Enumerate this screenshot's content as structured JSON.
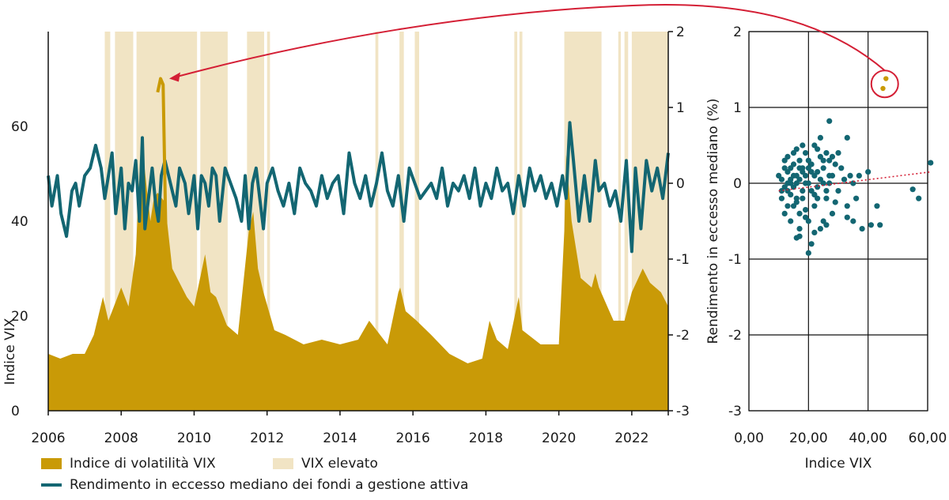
{
  "colors": {
    "vix_fill": "#c99a07",
    "high_vix_band": "#f1e4c4",
    "excess_line": "#136672",
    "scatter_point": "#136672",
    "highlight_point": "#c99a07",
    "annotation": "#d41f35",
    "grid": "#111111"
  },
  "legend": {
    "vix_label": "Indice di volatilità VIX",
    "high_label": "VIX elevato",
    "excess_label": "Rendimento in eccesso mediano dei fondi a gestione attiva"
  },
  "chart_data": [
    {
      "type": "area",
      "xlim": [
        2006,
        2023
      ],
      "x_ticks": [
        "2006",
        "2008",
        "2010",
        "2012",
        "2014",
        "2016",
        "2018",
        "2020",
        "2022"
      ],
      "vix_axis": {
        "title": "Indice VIX",
        "ticks": [
          "0",
          "20",
          "40",
          "60"
        ],
        "ylim": [
          0,
          80
        ]
      },
      "excess_axis": {
        "ticks": [
          "2",
          "1",
          "0",
          "-1",
          "-2",
          "-3"
        ],
        "ylim": [
          -3,
          2
        ]
      },
      "high_vix_periods": [
        [
          2007.55,
          2007.7
        ],
        [
          2007.83,
          2008.33
        ],
        [
          2008.42,
          2010.08
        ],
        [
          2010.17,
          2010.92
        ],
        [
          2011.45,
          2011.92
        ],
        [
          2012.0,
          2012.08
        ],
        [
          2014.97,
          2015.05
        ],
        [
          2015.63,
          2015.75
        ],
        [
          2016.05,
          2016.17
        ],
        [
          2018.78,
          2018.86
        ],
        [
          2018.92,
          2019.0
        ],
        [
          2020.15,
          2021.17
        ],
        [
          2021.63,
          2021.7
        ],
        [
          2021.8,
          2021.9
        ],
        [
          2022.0,
          2023.0
        ]
      ],
      "series": [
        {
          "key": "vix",
          "x": [
            2006.0,
            2006.33,
            2006.67,
            2007.0,
            2007.25,
            2007.5,
            2007.65,
            2007.8,
            2008.0,
            2008.2,
            2008.4,
            2008.55,
            2008.7,
            2008.8,
            2008.9,
            2009.0,
            2009.2,
            2009.4,
            2009.6,
            2009.8,
            2010.0,
            2010.3,
            2010.45,
            2010.6,
            2010.9,
            2011.2,
            2011.5,
            2011.62,
            2011.75,
            2011.9,
            2012.2,
            2012.5,
            2013.0,
            2013.5,
            2014.0,
            2014.5,
            2014.8,
            2015.0,
            2015.3,
            2015.6,
            2015.65,
            2015.8,
            2016.1,
            2016.5,
            2017.0,
            2017.5,
            2017.9,
            2018.1,
            2018.3,
            2018.6,
            2018.9,
            2019.0,
            2019.5,
            2020.0,
            2020.15,
            2020.2,
            2020.35,
            2020.6,
            2020.9,
            2021.0,
            2021.1,
            2021.5,
            2021.8,
            2022.0,
            2022.3,
            2022.5,
            2022.8,
            2023.0
          ],
          "values": [
            12,
            11,
            12,
            12,
            16,
            24,
            19,
            22,
            26,
            22,
            33,
            58,
            47,
            40,
            45,
            46,
            44,
            30,
            27,
            24,
            22,
            33,
            25,
            24,
            18,
            16,
            38,
            42,
            30,
            25,
            17,
            16,
            14,
            15,
            14,
            15,
            19,
            17,
            14,
            25,
            26,
            21,
            19,
            16,
            12,
            10,
            11,
            19,
            15,
            13,
            24,
            17,
            14,
            14,
            38,
            54,
            40,
            28,
            26,
            29,
            26,
            19,
            19,
            25,
            30,
            27,
            25,
            22
          ]
        },
        {
          "key": "excess_return",
          "x": [
            2006.0,
            2006.1,
            2006.25,
            2006.35,
            2006.5,
            2006.65,
            2006.75,
            2006.85,
            2007.0,
            2007.15,
            2007.3,
            2007.45,
            2007.55,
            2007.65,
            2007.75,
            2007.85,
            2008.0,
            2008.1,
            2008.2,
            2008.3,
            2008.4,
            2008.5,
            2008.58,
            2008.65,
            2008.75,
            2008.85,
            2008.95,
            2009.02,
            2009.1,
            2009.2,
            2009.35,
            2009.5,
            2009.6,
            2009.75,
            2009.85,
            2010.0,
            2010.1,
            2010.2,
            2010.3,
            2010.4,
            2010.5,
            2010.6,
            2010.7,
            2010.85,
            2011.0,
            2011.15,
            2011.3,
            2011.4,
            2011.5,
            2011.6,
            2011.7,
            2011.8,
            2011.9,
            2012.0,
            2012.15,
            2012.3,
            2012.45,
            2012.6,
            2012.75,
            2012.9,
            2013.05,
            2013.2,
            2013.35,
            2013.5,
            2013.65,
            2013.8,
            2013.95,
            2014.1,
            2014.25,
            2014.4,
            2014.55,
            2014.7,
            2014.85,
            2015.0,
            2015.15,
            2015.3,
            2015.45,
            2015.6,
            2015.75,
            2015.9,
            2016.05,
            2016.2,
            2016.35,
            2016.5,
            2016.65,
            2016.8,
            2016.95,
            2017.1,
            2017.25,
            2017.4,
            2017.55,
            2017.7,
            2017.85,
            2018.0,
            2018.15,
            2018.3,
            2018.45,
            2018.6,
            2018.75,
            2018.9,
            2019.05,
            2019.2,
            2019.35,
            2019.5,
            2019.65,
            2019.8,
            2019.95,
            2020.1,
            2020.2,
            2020.3,
            2020.4,
            2020.55,
            2020.7,
            2020.85,
            2021.0,
            2021.1,
            2021.25,
            2021.4,
            2021.55,
            2021.7,
            2021.85,
            2022.0,
            2022.1,
            2022.25,
            2022.4,
            2022.55,
            2022.7,
            2022.85,
            2023.0
          ],
          "values": [
            0.1,
            -0.3,
            0.1,
            -0.4,
            -0.7,
            -0.1,
            0.0,
            -0.3,
            0.1,
            0.2,
            0.5,
            0.2,
            -0.2,
            0.1,
            0.4,
            -0.4,
            0.2,
            -0.6,
            0.0,
            -0.1,
            0.3,
            -0.5,
            0.6,
            -0.6,
            -0.2,
            0.2,
            -0.3,
            -0.5,
            0.1,
            0.3,
            0.0,
            -0.3,
            0.2,
            0.0,
            -0.4,
            0.1,
            -0.6,
            0.1,
            0.0,
            -0.3,
            0.2,
            0.1,
            -0.5,
            0.2,
            0.0,
            -0.2,
            -0.5,
            0.1,
            -0.6,
            0.0,
            0.2,
            -0.2,
            -0.6,
            0.0,
            0.2,
            -0.1,
            -0.3,
            0.0,
            -0.4,
            0.2,
            0.0,
            -0.1,
            -0.3,
            0.1,
            -0.2,
            0.0,
            0.1,
            -0.4,
            0.4,
            0.0,
            -0.2,
            0.1,
            -0.3,
            0.0,
            0.4,
            -0.1,
            -0.3,
            0.1,
            -0.5,
            0.2,
            0.0,
            -0.2,
            -0.1,
            0.0,
            -0.2,
            0.2,
            -0.3,
            0.0,
            -0.1,
            0.1,
            -0.2,
            0.2,
            -0.3,
            0.0,
            -0.2,
            0.2,
            -0.1,
            0.0,
            -0.4,
            0.1,
            -0.3,
            0.2,
            -0.1,
            0.1,
            -0.2,
            0.0,
            -0.3,
            0.1,
            -0.2,
            0.8,
            0.3,
            -0.5,
            0.1,
            -0.5,
            0.3,
            -0.1,
            0.0,
            -0.3,
            -0.1,
            -0.5,
            0.3,
            -0.9,
            0.2,
            -0.6,
            0.3,
            -0.1,
            0.2,
            -0.2,
            0.4
          ]
        },
        {
          "key": "highlight_spike",
          "x": [
            2009.0,
            2009.08,
            2009.15,
            2009.22
          ],
          "values": [
            1.2,
            1.38,
            1.3,
            -0.55
          ]
        }
      ]
    },
    {
      "type": "scatter",
      "xlabel": "Indice VIX",
      "ylabel": "Rendimento in eccesso mediano (%)",
      "xlim": [
        0,
        60
      ],
      "ylim": [
        -3,
        2
      ],
      "x_ticks": [
        "0,00",
        "20,00",
        "40,00",
        "60,00"
      ],
      "y_ticks": [
        "2",
        "1",
        "0",
        "-1",
        "-2",
        "-3"
      ],
      "points": [
        [
          10,
          0.1
        ],
        [
          11,
          -0.1
        ],
        [
          12,
          0.2
        ],
        [
          13,
          -0.3
        ],
        [
          14,
          0.0
        ],
        [
          15,
          0.1
        ],
        [
          16,
          -0.2
        ],
        [
          17,
          0.3
        ],
        [
          18,
          -0.1
        ],
        [
          19,
          0.0
        ],
        [
          11,
          0.05
        ],
        [
          12,
          -0.05
        ],
        [
          13,
          0.15
        ],
        [
          14,
          -0.15
        ],
        [
          15,
          0.25
        ],
        [
          16,
          -0.25
        ],
        [
          17,
          0.05
        ],
        [
          18,
          0.15
        ],
        [
          19,
          -0.35
        ],
        [
          20,
          0.2
        ],
        [
          21,
          -0.1
        ],
        [
          22,
          0.1
        ],
        [
          23,
          -0.2
        ],
        [
          24,
          0.35
        ],
        [
          25,
          0.0
        ],
        [
          12,
          -0.4
        ],
        [
          13,
          0.35
        ],
        [
          14,
          -0.5
        ],
        [
          15,
          0.4
        ],
        [
          16,
          0.45
        ],
        [
          17,
          -0.6
        ],
        [
          18,
          0.5
        ],
        [
          19,
          -0.45
        ],
        [
          20,
          0.3
        ],
        [
          11,
          -0.2
        ],
        [
          12,
          0.3
        ],
        [
          13,
          -0.1
        ],
        [
          14,
          0.2
        ],
        [
          15,
          -0.3
        ],
        [
          16,
          0.0
        ],
        [
          17,
          -0.4
        ],
        [
          18,
          0.2
        ],
        [
          19,
          0.4
        ],
        [
          20,
          -0.5
        ],
        [
          21,
          0.25
        ],
        [
          22,
          -0.3
        ],
        [
          23,
          0.15
        ],
        [
          24,
          -0.6
        ],
        [
          25,
          0.3
        ],
        [
          26,
          -0.2
        ],
        [
          27,
          0.1
        ],
        [
          28,
          -0.4
        ],
        [
          29,
          0.25
        ],
        [
          30,
          -0.1
        ],
        [
          31,
          0.2
        ],
        [
          32,
          0.05
        ],
        [
          33,
          -0.3
        ],
        [
          34,
          0.1
        ],
        [
          35,
          0.0
        ],
        [
          36,
          -0.2
        ],
        [
          22,
          0.5
        ],
        [
          23,
          0.45
        ],
        [
          24,
          0.6
        ],
        [
          26,
          0.4
        ],
        [
          27,
          0.3
        ],
        [
          28,
          0.35
        ],
        [
          30,
          0.4
        ],
        [
          33,
          0.6
        ],
        [
          27,
          0.82
        ],
        [
          21,
          -0.8
        ],
        [
          22,
          -0.65
        ],
        [
          16,
          -0.72
        ],
        [
          17,
          -0.7
        ],
        [
          20,
          -0.92
        ],
        [
          25,
          -0.5
        ],
        [
          26,
          -0.55
        ],
        [
          29,
          -0.25
        ],
        [
          33,
          -0.45
        ],
        [
          35,
          -0.5
        ],
        [
          37,
          0.1
        ],
        [
          38,
          -0.6
        ],
        [
          40,
          0.15
        ],
        [
          41,
          -0.55
        ],
        [
          43,
          -0.3
        ],
        [
          44,
          -0.55
        ],
        [
          55,
          -0.08
        ],
        [
          57,
          -0.2
        ],
        [
          61,
          0.27
        ],
        [
          13,
          0.0
        ],
        [
          14,
          0.05
        ],
        [
          15,
          -0.05
        ],
        [
          16,
          0.1
        ],
        [
          17,
          0.2
        ],
        [
          18,
          -0.2
        ],
        [
          19,
          0.1
        ],
        [
          20,
          0.0
        ],
        [
          21,
          0.15
        ],
        [
          22,
          -0.15
        ],
        [
          23,
          -0.05
        ],
        [
          24,
          0.05
        ],
        [
          25,
          0.2
        ],
        [
          26,
          -0.1
        ],
        [
          27,
          0.0
        ],
        [
          28,
          0.1
        ]
      ],
      "highlight_points": [
        [
          46,
          1.38
        ],
        [
          45,
          1.25
        ]
      ],
      "trend_line": [
        [
          10,
          -0.1
        ],
        [
          61,
          0.15
        ]
      ]
    }
  ]
}
